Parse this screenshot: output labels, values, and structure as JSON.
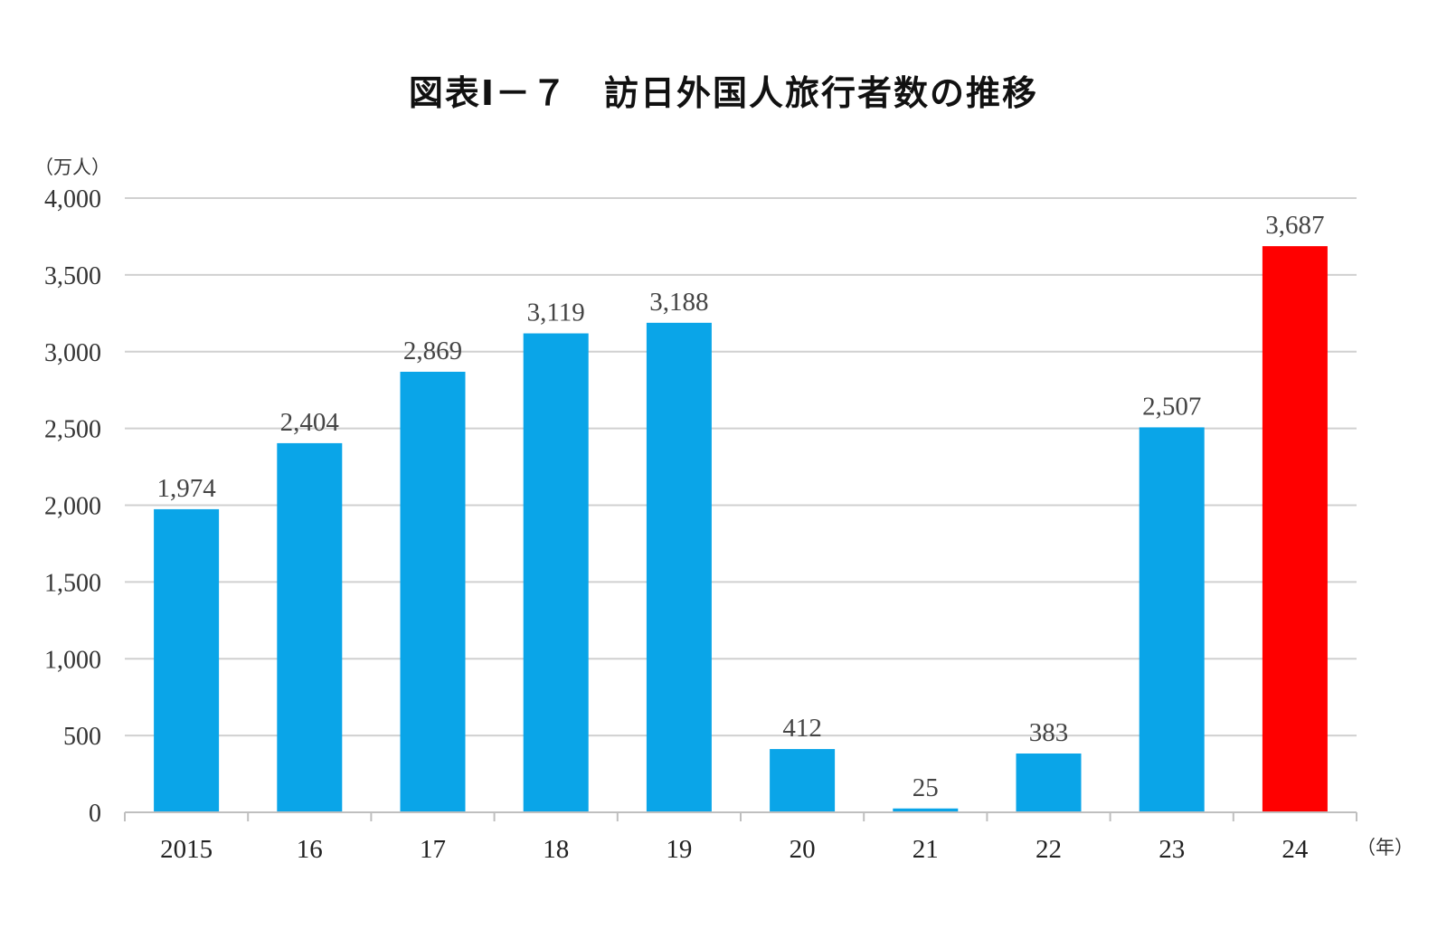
{
  "chart_data": {
    "type": "bar",
    "title": "図表Ⅰ－７　訪日外国人旅行者数の推移",
    "ylabel": "（万人）",
    "xlabel": "（年）",
    "categories": [
      "2015",
      "16",
      "17",
      "18",
      "19",
      "20",
      "21",
      "22",
      "23",
      "24"
    ],
    "values": [
      1974,
      2404,
      2869,
      3119,
      3188,
      412,
      25,
      383,
      2507,
      3687
    ],
    "value_labels": [
      "1,974",
      "2,404",
      "2,869",
      "3,119",
      "3,188",
      "412",
      "25",
      "383",
      "2,507",
      "3,687"
    ],
    "ylim": [
      0,
      4000
    ],
    "yticks": [
      0,
      500,
      1000,
      1500,
      2000,
      2500,
      3000,
      3500,
      4000
    ],
    "ytick_labels": [
      "0",
      "500",
      "1,000",
      "1,500",
      "2,000",
      "2,500",
      "3,000",
      "3,500",
      "4,000"
    ],
    "grid": true,
    "legend": "none",
    "colors": {
      "bar": "#0aa5e8",
      "highlight": "#ff0000",
      "grid": "#d0d0d0",
      "axis": "#bfbfbf"
    },
    "highlight_category": "24"
  }
}
